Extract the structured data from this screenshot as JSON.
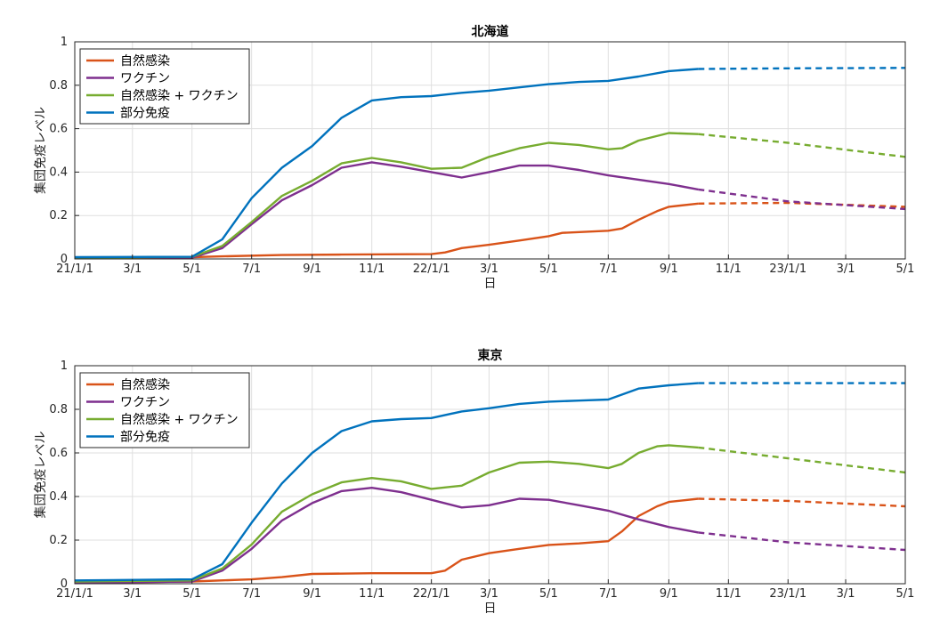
{
  "colors": {
    "natural": "#D95319",
    "vaccine": "#7E2F8E",
    "combined": "#77AC30",
    "partial": "#0072BD"
  },
  "chart_data": [
    {
      "type": "line",
      "title": "北海道",
      "xlabel": "日",
      "ylabel": "集団免疫レベル",
      "ylim": [
        0,
        1
      ],
      "yticks": [
        0,
        0.2,
        0.4,
        0.6,
        0.8,
        1
      ],
      "ytick_labels": [
        "0",
        "0.2",
        "0.4",
        "0.6",
        "0.8",
        "1"
      ],
      "xlim": [
        "2021-01-01",
        "2023-05-01"
      ],
      "xticks": [
        "2021-01-01",
        "2021-03-01",
        "2021-05-01",
        "2021-07-01",
        "2021-09-01",
        "2021-11-01",
        "2022-01-01",
        "2022-03-01",
        "2022-05-01",
        "2022-07-01",
        "2022-09-01",
        "2022-11-01",
        "2023-01-01",
        "2023-03-01",
        "2023-05-01"
      ],
      "xtick_labels": [
        "21/1/1",
        "3/1",
        "5/1",
        "7/1",
        "9/1",
        "11/1",
        "22/1/1",
        "3/1",
        "5/1",
        "7/1",
        "9/1",
        "11/1",
        "23/1/1",
        "3/1",
        "5/1"
      ],
      "grid": true,
      "legend_position": "top-left",
      "forecast_start": "2022-10-01",
      "series": [
        {
          "name": "自然感染",
          "color_key": "natural",
          "x": [
            "2021-01-01",
            "2021-05-01",
            "2021-06-01",
            "2021-08-01",
            "2021-10-01",
            "2022-01-01",
            "2022-01-15",
            "2022-02-01",
            "2022-03-01",
            "2022-04-01",
            "2022-05-01",
            "2022-05-15",
            "2022-07-01",
            "2022-07-15",
            "2022-08-01",
            "2022-08-20",
            "2022-09-01",
            "2022-10-01",
            "2023-01-01",
            "2023-05-01"
          ],
          "y": [
            0.005,
            0.008,
            0.012,
            0.018,
            0.02,
            0.022,
            0.03,
            0.05,
            0.065,
            0.085,
            0.105,
            0.12,
            0.13,
            0.14,
            0.18,
            0.22,
            0.24,
            0.255,
            0.258,
            0.24
          ]
        },
        {
          "name": "ワクチン",
          "color_key": "vaccine",
          "x": [
            "2021-01-01",
            "2021-05-01",
            "2021-06-01",
            "2021-07-01",
            "2021-08-01",
            "2021-09-01",
            "2021-10-01",
            "2021-11-01",
            "2021-12-01",
            "2022-01-01",
            "2022-02-01",
            "2022-03-01",
            "2022-04-01",
            "2022-05-01",
            "2022-06-01",
            "2022-07-01",
            "2022-08-01",
            "2022-09-01",
            "2022-10-01",
            "2023-01-01",
            "2023-05-01"
          ],
          "y": [
            0.005,
            0.006,
            0.05,
            0.16,
            0.27,
            0.34,
            0.42,
            0.445,
            0.425,
            0.4,
            0.375,
            0.4,
            0.43,
            0.43,
            0.41,
            0.385,
            0.365,
            0.345,
            0.32,
            0.265,
            0.23
          ]
        },
        {
          "name": "自然感染 + ワクチン",
          "color_key": "combined",
          "x": [
            "2021-01-01",
            "2021-05-01",
            "2021-06-01",
            "2021-07-01",
            "2021-08-01",
            "2021-09-01",
            "2021-10-01",
            "2021-11-01",
            "2021-12-01",
            "2022-01-01",
            "2022-02-01",
            "2022-03-01",
            "2022-04-01",
            "2022-05-01",
            "2022-06-01",
            "2022-07-01",
            "2022-07-15",
            "2022-08-01",
            "2022-09-01",
            "2022-10-01",
            "2023-01-01",
            "2023-05-01"
          ],
          "y": [
            0.005,
            0.01,
            0.06,
            0.17,
            0.29,
            0.36,
            0.44,
            0.465,
            0.445,
            0.415,
            0.42,
            0.47,
            0.51,
            0.535,
            0.525,
            0.505,
            0.51,
            0.545,
            0.58,
            0.575,
            0.535,
            0.47
          ]
        },
        {
          "name": "部分免疫",
          "color_key": "partial",
          "x": [
            "2021-01-01",
            "2021-05-01",
            "2021-06-01",
            "2021-07-01",
            "2021-08-01",
            "2021-09-01",
            "2021-10-01",
            "2021-11-01",
            "2021-12-01",
            "2022-01-01",
            "2022-02-01",
            "2022-03-01",
            "2022-04-01",
            "2022-05-01",
            "2022-06-01",
            "2022-07-01",
            "2022-08-01",
            "2022-09-01",
            "2022-10-01",
            "2023-01-01",
            "2023-05-01"
          ],
          "y": [
            0.008,
            0.01,
            0.09,
            0.28,
            0.42,
            0.52,
            0.65,
            0.73,
            0.745,
            0.75,
            0.765,
            0.775,
            0.79,
            0.805,
            0.815,
            0.82,
            0.84,
            0.865,
            0.875,
            0.878,
            0.88
          ]
        }
      ]
    },
    {
      "type": "line",
      "title": "東京",
      "xlabel": "日",
      "ylabel": "集団免疫レベル",
      "ylim": [
        0,
        1
      ],
      "yticks": [
        0,
        0.2,
        0.4,
        0.6,
        0.8,
        1
      ],
      "ytick_labels": [
        "0",
        "0.2",
        "0.4",
        "0.6",
        "0.8",
        "1"
      ],
      "xlim": [
        "2021-01-01",
        "2023-05-01"
      ],
      "xticks": [
        "2021-01-01",
        "2021-03-01",
        "2021-05-01",
        "2021-07-01",
        "2021-09-01",
        "2021-11-01",
        "2022-01-01",
        "2022-03-01",
        "2022-05-01",
        "2022-07-01",
        "2022-09-01",
        "2022-11-01",
        "2023-01-01",
        "2023-03-01",
        "2023-05-01"
      ],
      "xtick_labels": [
        "21/1/1",
        "3/1",
        "5/1",
        "7/1",
        "9/1",
        "11/1",
        "22/1/1",
        "3/1",
        "5/1",
        "7/1",
        "9/1",
        "11/1",
        "23/1/1",
        "3/1",
        "5/1"
      ],
      "grid": true,
      "legend_position": "top-left",
      "forecast_start": "2022-10-01",
      "series": [
        {
          "name": "自然感染",
          "color_key": "natural",
          "x": [
            "2021-01-01",
            "2021-05-01",
            "2021-07-01",
            "2021-08-01",
            "2021-09-01",
            "2021-11-01",
            "2022-01-01",
            "2022-01-15",
            "2022-02-01",
            "2022-03-01",
            "2022-04-01",
            "2022-05-01",
            "2022-06-01",
            "2022-07-01",
            "2022-07-15",
            "2022-08-01",
            "2022-08-20",
            "2022-09-01",
            "2022-10-01",
            "2023-01-01",
            "2023-05-01"
          ],
          "y": [
            0.005,
            0.01,
            0.02,
            0.03,
            0.045,
            0.048,
            0.048,
            0.06,
            0.11,
            0.14,
            0.16,
            0.178,
            0.185,
            0.195,
            0.24,
            0.31,
            0.355,
            0.375,
            0.39,
            0.38,
            0.355
          ]
        },
        {
          "name": "ワクチン",
          "color_key": "vaccine",
          "x": [
            "2021-01-01",
            "2021-05-01",
            "2021-06-01",
            "2021-07-01",
            "2021-08-01",
            "2021-09-01",
            "2021-10-01",
            "2021-11-01",
            "2021-12-01",
            "2022-01-01",
            "2022-02-01",
            "2022-03-01",
            "2022-04-01",
            "2022-05-01",
            "2022-06-01",
            "2022-07-01",
            "2022-08-01",
            "2022-09-01",
            "2022-10-01",
            "2023-01-01",
            "2023-05-01"
          ],
          "y": [
            0.005,
            0.01,
            0.06,
            0.16,
            0.29,
            0.37,
            0.425,
            0.44,
            0.42,
            0.385,
            0.35,
            0.36,
            0.39,
            0.385,
            0.36,
            0.335,
            0.295,
            0.26,
            0.235,
            0.19,
            0.155
          ]
        },
        {
          "name": "自然感染 + ワクチン",
          "color_key": "combined",
          "x": [
            "2021-01-01",
            "2021-05-01",
            "2021-06-01",
            "2021-07-01",
            "2021-08-01",
            "2021-09-01",
            "2021-10-01",
            "2021-11-01",
            "2021-12-01",
            "2022-01-01",
            "2022-02-01",
            "2022-03-01",
            "2022-04-01",
            "2022-05-01",
            "2022-06-01",
            "2022-07-01",
            "2022-07-15",
            "2022-08-01",
            "2022-08-20",
            "2022-09-01",
            "2022-10-01",
            "2023-01-01",
            "2023-05-01"
          ],
          "y": [
            0.01,
            0.015,
            0.07,
            0.18,
            0.33,
            0.41,
            0.465,
            0.485,
            0.47,
            0.435,
            0.45,
            0.51,
            0.555,
            0.56,
            0.55,
            0.53,
            0.55,
            0.6,
            0.63,
            0.635,
            0.625,
            0.575,
            0.51
          ]
        },
        {
          "name": "部分免疫",
          "color_key": "partial",
          "x": [
            "2021-01-01",
            "2021-05-01",
            "2021-06-01",
            "2021-07-01",
            "2021-08-01",
            "2021-09-01",
            "2021-10-01",
            "2021-11-01",
            "2021-12-01",
            "2022-01-01",
            "2022-02-01",
            "2022-03-01",
            "2022-04-01",
            "2022-05-01",
            "2022-06-01",
            "2022-07-01",
            "2022-08-01",
            "2022-09-01",
            "2022-10-01",
            "2023-01-01",
            "2023-05-01"
          ],
          "y": [
            0.015,
            0.02,
            0.09,
            0.28,
            0.46,
            0.6,
            0.7,
            0.745,
            0.755,
            0.76,
            0.79,
            0.805,
            0.825,
            0.835,
            0.84,
            0.845,
            0.895,
            0.91,
            0.92,
            0.92,
            0.92
          ]
        }
      ]
    }
  ]
}
